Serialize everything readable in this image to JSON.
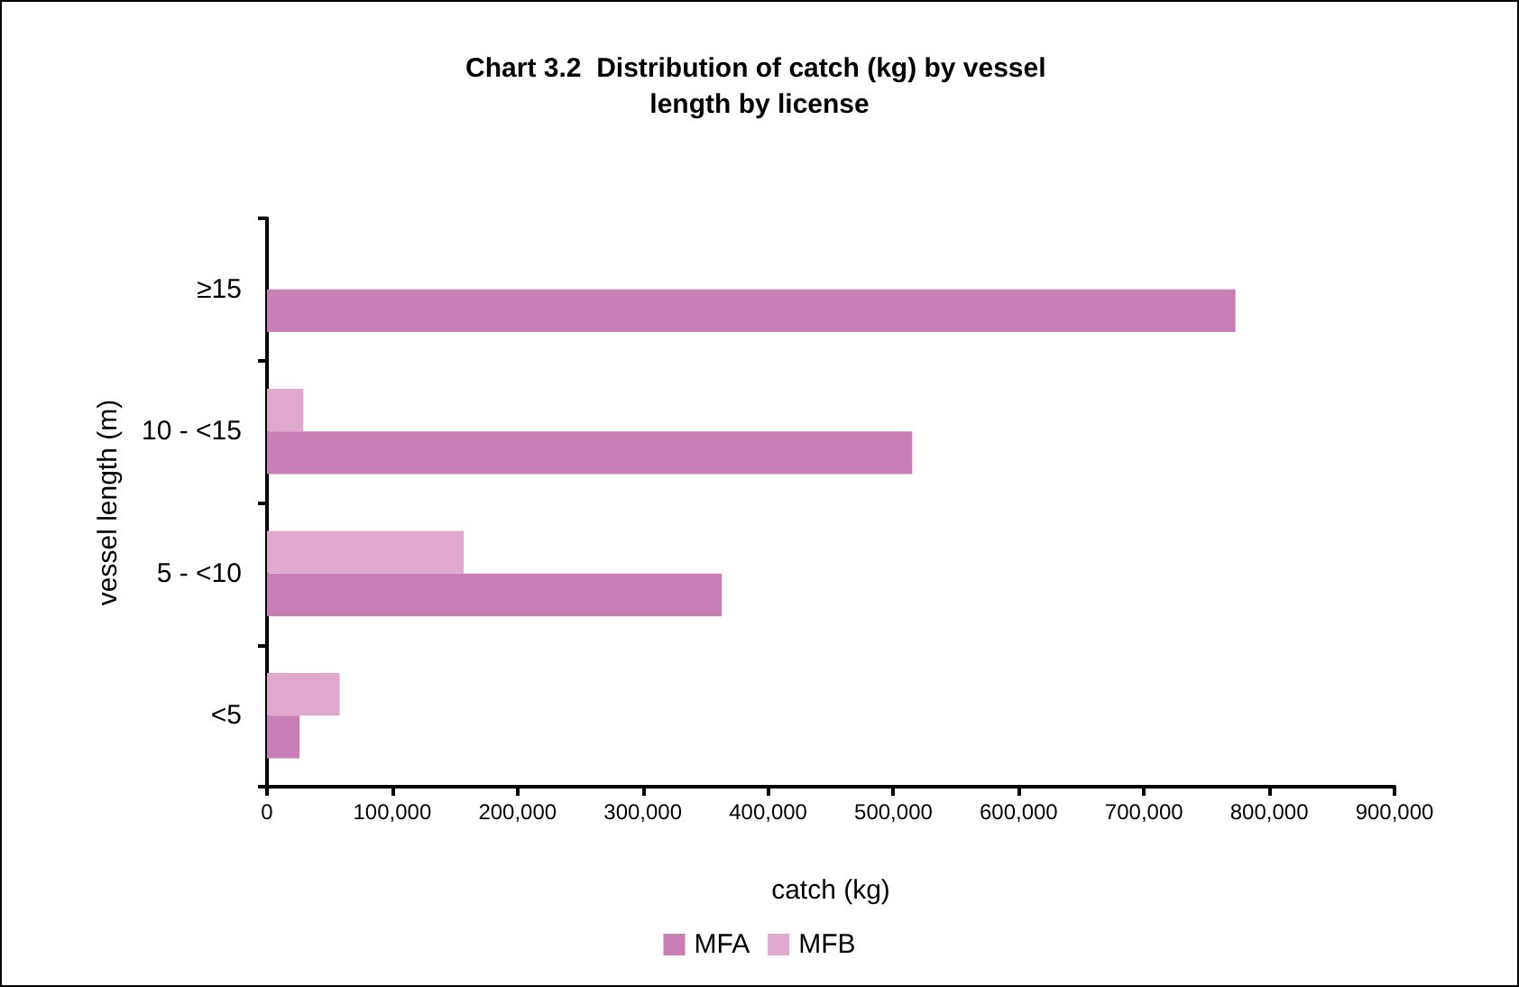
{
  "chart_data": {
    "type": "bar",
    "orientation": "horizontal",
    "title": "Chart 3.2  Distribution of catch (kg) by vessel length by license",
    "xlabel": "catch (kg)",
    "ylabel": "vessel length (m)",
    "categories": [
      "≥15",
      "10 - <15",
      "5 - <10",
      "<5"
    ],
    "series": [
      {
        "name": "MFA",
        "color": "#c97fb5",
        "values": [
          773000,
          515000,
          363000,
          26000
        ]
      },
      {
        "name": "MFB",
        "color": "#dfa8cc",
        "values": [
          0,
          29000,
          157000,
          58000
        ]
      }
    ],
    "xlim": [
      0,
      900000
    ],
    "xticks": [
      0,
      {
        "value": 100000,
        "label": "100,000"
      },
      {
        "value": 200000,
        "label": "200,000"
      },
      {
        "value": 300000,
        "label": "300,000"
      },
      {
        "value": 400000,
        "label": "400,000"
      },
      {
        "value": 500000,
        "label": "500,000"
      },
      {
        "value": 600000,
        "label": "600,000"
      },
      {
        "value": 700000,
        "label": "700,000"
      },
      {
        "value": 800000,
        "label": "800,000"
      },
      {
        "value": 900000,
        "label": "900,000"
      }
    ],
    "grid": false,
    "legend": "bottom"
  }
}
